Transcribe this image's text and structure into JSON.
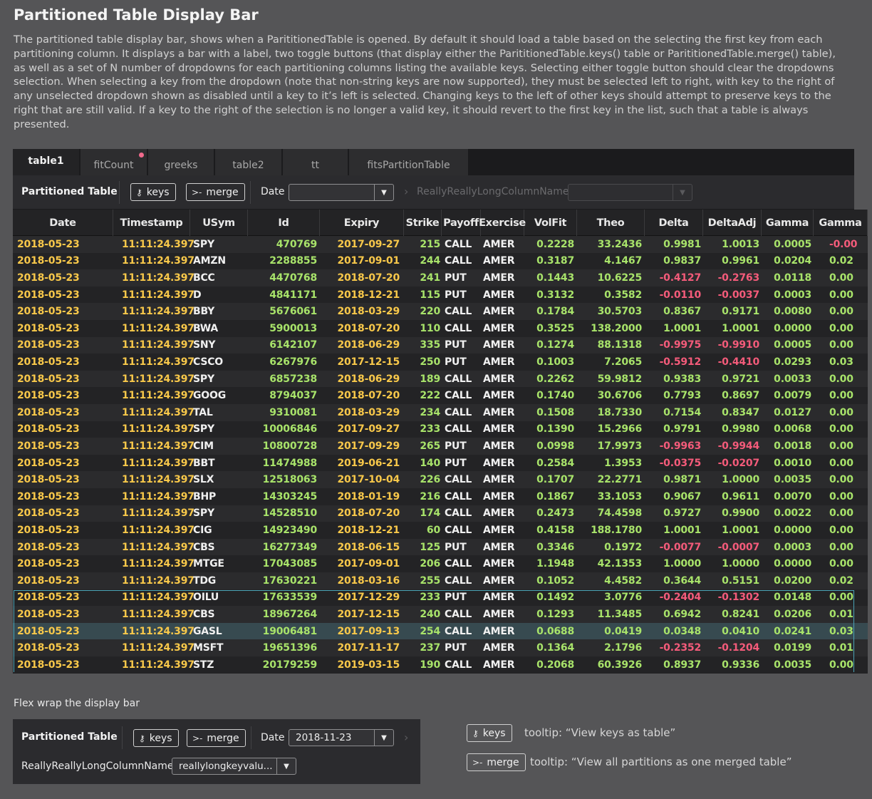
{
  "page": {
    "title": "Partitioned Table Display Bar",
    "description": "The partitioned table display bar, shows when a ParititionedTable is opened. By default it should load a table based on the selecting the first key from each partitioning column. It displays a bar with a label, two toggle buttons (that display either the ParititionedTable.keys() table or ParititionedTable.merge() table), as well as a set of N number of dropdowns for each partitioning columns listing the available keys. Selecting either toggle button should clear the dropdowns selection. When selecting a key from the dropdown (note that non-string keys are now supported), they must be selected left to right, with key to the right of any unselected dropdown shown as disabled until a key to it’s left is selected. Changing keys to the left of other keys should attempt to preserve keys to the right that are still valid. If a key to the right of the selection is no longer a valid key, it should revert to the first key in the list, such that a table is always presented."
  },
  "tabs": [
    {
      "label": "table1",
      "active": true
    },
    {
      "label": "fitCount",
      "badge": true
    },
    {
      "label": "greeks"
    },
    {
      "label": "table2"
    },
    {
      "label": "tt"
    },
    {
      "label": "fitsPartitionTable"
    }
  ],
  "display_bar": {
    "label": "Partitioned Table",
    "keys_label": "keys",
    "merge_label": "merge",
    "date_label": "Date",
    "date_value": "",
    "long_column_label": "ReallyReallyLongColumnName",
    "long_column_value": ""
  },
  "columns": [
    "Date",
    "Timestamp",
    "USym",
    "Id",
    "Expiry",
    "Strike",
    "Payoff",
    "Exercise",
    "VolFit",
    "Theo",
    "Delta",
    "DeltaAdj",
    "Gamma",
    "Gamma"
  ],
  "rows": [
    [
      "2018-05-23",
      "11:11:24.397",
      "SPY",
      "470769",
      "2017-09-27",
      "215",
      "CALL",
      "AMER",
      "0.2228",
      "33.2436",
      "0.9981",
      "1.0013",
      "0.0005",
      "-0.00"
    ],
    [
      "2018-05-23",
      "11:11:24.397",
      "AMZN",
      "2288855",
      "2017-09-01",
      "244",
      "CALL",
      "AMER",
      "0.3187",
      "4.1467",
      "0.9837",
      "0.9961",
      "0.0204",
      "0.02"
    ],
    [
      "2018-05-23",
      "11:11:24.397",
      "BCC",
      "4470768",
      "2018-07-20",
      "241",
      "PUT",
      "AMER",
      "0.1443",
      "10.6225",
      "-0.4127",
      "-0.2763",
      "0.0118",
      "0.00"
    ],
    [
      "2018-05-23",
      "11:11:24.397",
      "D",
      "4841171",
      "2018-12-21",
      "115",
      "PUT",
      "AMER",
      "0.3132",
      "0.3582",
      "-0.0110",
      "-0.0037",
      "0.0003",
      "0.00"
    ],
    [
      "2018-05-23",
      "11:11:24.397",
      "BBY",
      "5676061",
      "2018-03-29",
      "220",
      "CALL",
      "AMER",
      "0.1784",
      "30.5703",
      "0.8367",
      "0.9171",
      "0.0080",
      "0.00"
    ],
    [
      "2018-05-23",
      "11:11:24.397",
      "BWA",
      "5900013",
      "2018-07-20",
      "110",
      "CALL",
      "AMER",
      "0.3525",
      "138.2000",
      "1.0001",
      "1.0001",
      "0.0000",
      "0.00"
    ],
    [
      "2018-05-23",
      "11:11:24.397",
      "SNY",
      "6142107",
      "2018-06-29",
      "335",
      "PUT",
      "AMER",
      "0.1274",
      "88.1318",
      "-0.9975",
      "-0.9910",
      "0.0005",
      "0.00"
    ],
    [
      "2018-05-23",
      "11:11:24.397",
      "CSCO",
      "6267976",
      "2017-12-15",
      "250",
      "PUT",
      "AMER",
      "0.1003",
      "7.2065",
      "-0.5912",
      "-0.4410",
      "0.0293",
      "0.03"
    ],
    [
      "2018-05-23",
      "11:11:24.397",
      "SPY",
      "6857238",
      "2018-06-29",
      "189",
      "CALL",
      "AMER",
      "0.2262",
      "59.9812",
      "0.9383",
      "0.9721",
      "0.0033",
      "0.00"
    ],
    [
      "2018-05-23",
      "11:11:24.397",
      "GOOG",
      "8794037",
      "2018-07-20",
      "222",
      "CALL",
      "AMER",
      "0.1740",
      "30.6706",
      "0.7793",
      "0.8697",
      "0.0079",
      "0.00"
    ],
    [
      "2018-05-23",
      "11:11:24.397",
      "TAL",
      "9310081",
      "2018-03-29",
      "234",
      "CALL",
      "AMER",
      "0.1508",
      "18.7330",
      "0.7154",
      "0.8347",
      "0.0127",
      "0.00"
    ],
    [
      "2018-05-23",
      "11:11:24.397",
      "SPY",
      "10006846",
      "2017-09-27",
      "233",
      "CALL",
      "AMER",
      "0.1390",
      "15.2966",
      "0.9791",
      "0.9980",
      "0.0068",
      "0.00"
    ],
    [
      "2018-05-23",
      "11:11:24.397",
      "CIM",
      "10800728",
      "2017-09-29",
      "265",
      "PUT",
      "AMER",
      "0.0998",
      "17.9973",
      "-0.9963",
      "-0.9944",
      "0.0018",
      "0.00"
    ],
    [
      "2018-05-23",
      "11:11:24.397",
      "BBT",
      "11474988",
      "2019-06-21",
      "140",
      "PUT",
      "AMER",
      "0.2584",
      "1.3953",
      "-0.0375",
      "-0.0207",
      "0.0010",
      "0.00"
    ],
    [
      "2018-05-23",
      "11:11:24.397",
      "SLX",
      "12518063",
      "2017-10-04",
      "226",
      "CALL",
      "AMER",
      "0.1707",
      "22.2771",
      "0.9871",
      "1.0000",
      "0.0035",
      "0.00"
    ],
    [
      "2018-05-23",
      "11:11:24.397",
      "BHP",
      "14303245",
      "2018-01-19",
      "216",
      "CALL",
      "AMER",
      "0.1867",
      "33.1053",
      "0.9067",
      "0.9611",
      "0.0070",
      "0.00"
    ],
    [
      "2018-05-23",
      "11:11:24.397",
      "SPY",
      "14528510",
      "2018-07-20",
      "174",
      "CALL",
      "AMER",
      "0.2473",
      "74.4598",
      "0.9727",
      "0.9900",
      "0.0022",
      "0.00"
    ],
    [
      "2018-05-23",
      "11:11:24.397",
      "CIG",
      "14923490",
      "2018-12-21",
      "60",
      "CALL",
      "AMER",
      "0.4158",
      "188.1780",
      "1.0001",
      "1.0001",
      "0.0000",
      "0.00"
    ],
    [
      "2018-05-23",
      "11:11:24.397",
      "CBS",
      "16277349",
      "2018-06-15",
      "125",
      "PUT",
      "AMER",
      "0.3346",
      "0.1972",
      "-0.0077",
      "-0.0007",
      "0.0003",
      "0.00"
    ],
    [
      "2018-05-23",
      "11:11:24.397",
      "MTGE",
      "17043085",
      "2017-09-01",
      "206",
      "CALL",
      "AMER",
      "1.1948",
      "42.1353",
      "1.0000",
      "1.0000",
      "0.0000",
      "0.00"
    ],
    [
      "2018-05-23",
      "11:11:24.397",
      "TDG",
      "17630221",
      "2018-03-16",
      "255",
      "CALL",
      "AMER",
      "0.1052",
      "4.4582",
      "0.3644",
      "0.5151",
      "0.0200",
      "0.02"
    ],
    [
      "2018-05-23",
      "11:11:24.397",
      "OILU",
      "17633539",
      "2017-12-29",
      "233",
      "PUT",
      "AMER",
      "0.1492",
      "3.0776",
      "-0.2404",
      "-0.1302",
      "0.0148",
      "0.00"
    ],
    [
      "2018-05-23",
      "11:11:24.397",
      "CBS",
      "18967264",
      "2017-12-15",
      "240",
      "CALL",
      "AMER",
      "0.1293",
      "11.3485",
      "0.6942",
      "0.8241",
      "0.0206",
      "0.01"
    ],
    [
      "2018-05-23",
      "11:11:24.397",
      "GASL",
      "19006481",
      "2017-09-13",
      "254",
      "CALL",
      "AMER",
      "0.0688",
      "0.0419",
      "0.0348",
      "0.0410",
      "0.0241",
      "0.03"
    ],
    [
      "2018-05-23",
      "11:11:24.397",
      "MSFT",
      "19651396",
      "2017-11-17",
      "237",
      "PUT",
      "AMER",
      "0.1364",
      "2.1796",
      "-0.2352",
      "-0.1204",
      "0.0199",
      "0.01"
    ],
    [
      "2018-05-23",
      "11:11:24.397",
      "STZ",
      "20179259",
      "2019-03-15",
      "190",
      "CALL",
      "AMER",
      "0.2068",
      "60.3926",
      "0.8937",
      "0.9336",
      "0.0035",
      "0.00"
    ]
  ],
  "highlighted_row": 23,
  "colors": {
    "background": "#555557",
    "date_text": "#f8c84a",
    "positive": "#a8e36a",
    "negative": "#f45b7a",
    "selection_border": "#4aa3b5",
    "tab_badge": "#f06a8c"
  },
  "wrap_section": {
    "title": "Flex wrap the display bar",
    "label": "Partitioned Table",
    "keys_label": "keys",
    "merge_label": "merge",
    "date_label": "Date",
    "date_value": "2018-11-23",
    "long_column_label": "ReallyReallyLongColumnName",
    "long_column_value": "reallylongkeyvalu..."
  },
  "tooltips": {
    "keys_label": "keys",
    "keys_tooltip": "tooltip: “View keys as  table”",
    "merge_label": "merge",
    "merge_tooltip": "tooltip: “View all partitions as one merged table”"
  },
  "icons": {
    "keys": "key-icon",
    "merge": "merge-icon",
    "dropdown": "caret-down-icon",
    "separator": "chevron-right-icon"
  }
}
